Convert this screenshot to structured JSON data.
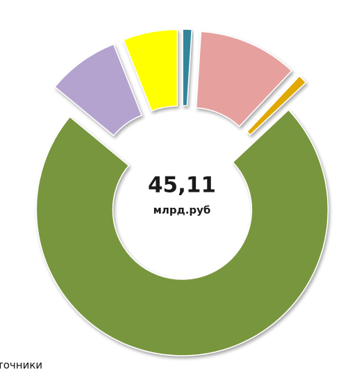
{
  "chart_data": {
    "type": "donut",
    "values": [
      1,
      11,
      1,
      73,
      8,
      6
    ],
    "colors": [
      "#31849b",
      "#e6a19e",
      "#e0a800",
      "#78963c",
      "#b4a3cf",
      "#ffff00"
    ],
    "center_text": "45,11",
    "center_subtext": "млрд.руб"
  },
  "footer_text": "точники"
}
